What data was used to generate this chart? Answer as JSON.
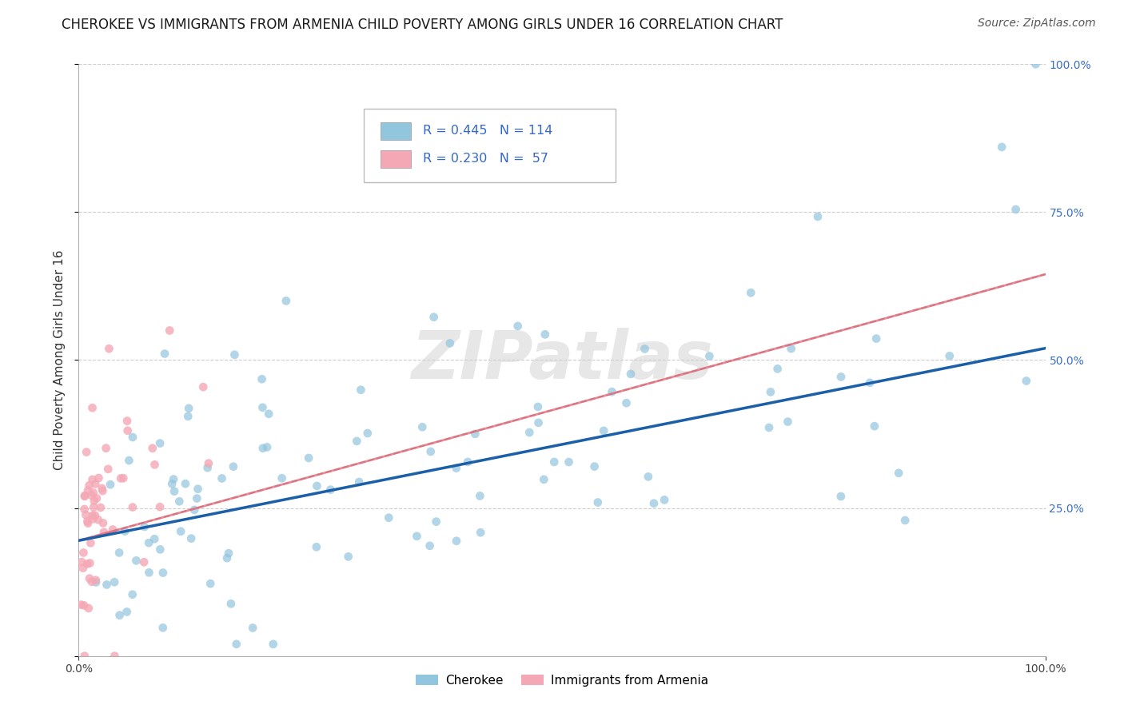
{
  "title": "CHEROKEE VS IMMIGRANTS FROM ARMENIA CHILD POVERTY AMONG GIRLS UNDER 16 CORRELATION CHART",
  "source": "Source: ZipAtlas.com",
  "ylabel": "Child Poverty Among Girls Under 16",
  "xlim": [
    0.0,
    1.0
  ],
  "ylim": [
    0.0,
    1.0
  ],
  "background_color": "#ffffff",
  "watermark": "ZIPatlas",
  "legend_R1": "0.445",
  "legend_N1": "114",
  "legend_R2": "0.230",
  "legend_N2": " 57",
  "color_blue": "#92c5de",
  "color_pink": "#f4a7b4",
  "line_color_blue": "#1a5fa8",
  "line_color_pink": "#e05c6e",
  "line_color_dashed": "#ccaaaa",
  "grid_color": "#c8c8c8",
  "right_tick_color": "#3a6fc4",
  "title_fontsize": 12,
  "source_fontsize": 10,
  "ylabel_fontsize": 11
}
